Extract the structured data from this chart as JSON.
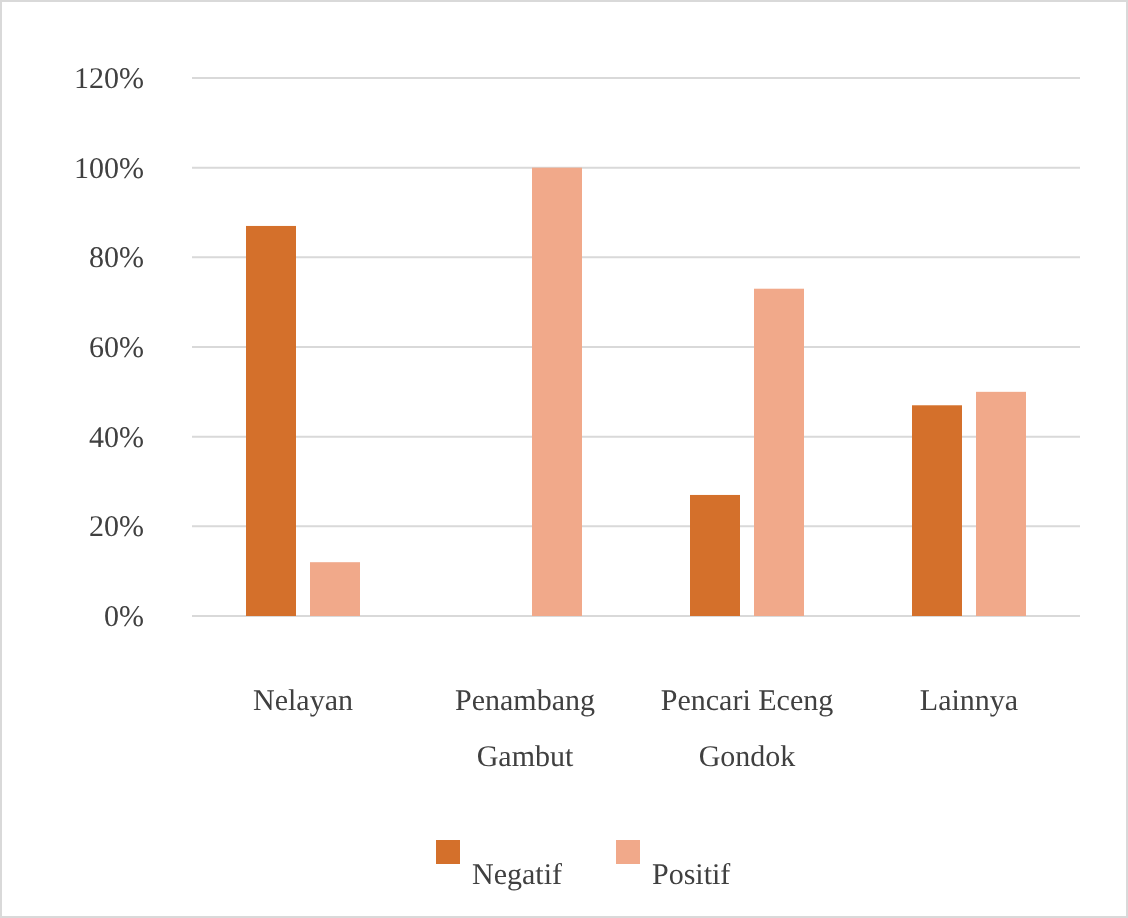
{
  "chart_data": {
    "type": "bar",
    "categories": [
      "Nelayan",
      "Penambang Gambut",
      "Pencari Eceng Gondok",
      "Lainnya"
    ],
    "series": [
      {
        "name": "Negatif",
        "color": "#d4702b",
        "values": [
          87,
          0,
          27,
          47
        ]
      },
      {
        "name": "Positif",
        "color": "#f1a98a",
        "values": [
          12,
          100,
          73,
          50
        ]
      }
    ],
    "ylim": [
      0,
      120
    ],
    "yticks": [
      {
        "value": 0,
        "label": "0%"
      },
      {
        "value": 20,
        "label": "20%"
      },
      {
        "value": 40,
        "label": "40%"
      },
      {
        "value": 60,
        "label": "60%"
      },
      {
        "value": 80,
        "label": "80%"
      },
      {
        "value": 100,
        "label": "100%"
      },
      {
        "value": 120,
        "label": "120%"
      }
    ],
    "grid": "y",
    "legend": "bottom"
  }
}
